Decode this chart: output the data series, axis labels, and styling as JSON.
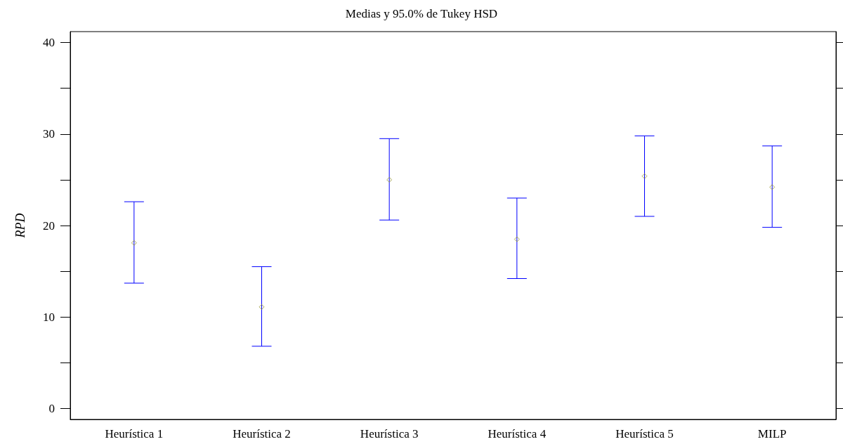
{
  "chart_data": {
    "type": "scatter",
    "title": "Medias y 95.0% de Tukey HSD",
    "ylabel": "RPD",
    "categories": [
      "Heurística 1",
      "Heurística 2",
      "Heurística 3",
      "Heurística 4",
      "Heurística 5",
      "MILP"
    ],
    "series": [
      {
        "color": "#0000ff",
        "colors": [
          "#999933",
          "#999933",
          "#999933",
          "#999933",
          "#999933",
          "#999933"
        ],
        "values": [
          18.1,
          11.1,
          25.0,
          18.5,
          25.4,
          24.2
        ],
        "errors": [
          [
            13.7,
            22.6
          ],
          [
            6.8,
            15.5
          ],
          [
            20.6,
            29.5
          ],
          [
            14.2,
            23.0
          ],
          [
            21.0,
            29.8
          ],
          [
            19.8,
            28.7
          ]
        ]
      }
    ],
    "marker": "diamond",
    "ylim": [
      -1.2,
      41.2
    ],
    "yticks": [
      0,
      {
        "value": 5,
        "label": null
      },
      10,
      {
        "value": 15,
        "label": null
      },
      20,
      {
        "value": 25,
        "label": null
      },
      30,
      {
        "value": 35,
        "label": null
      },
      40
    ],
    "grid": false
  }
}
